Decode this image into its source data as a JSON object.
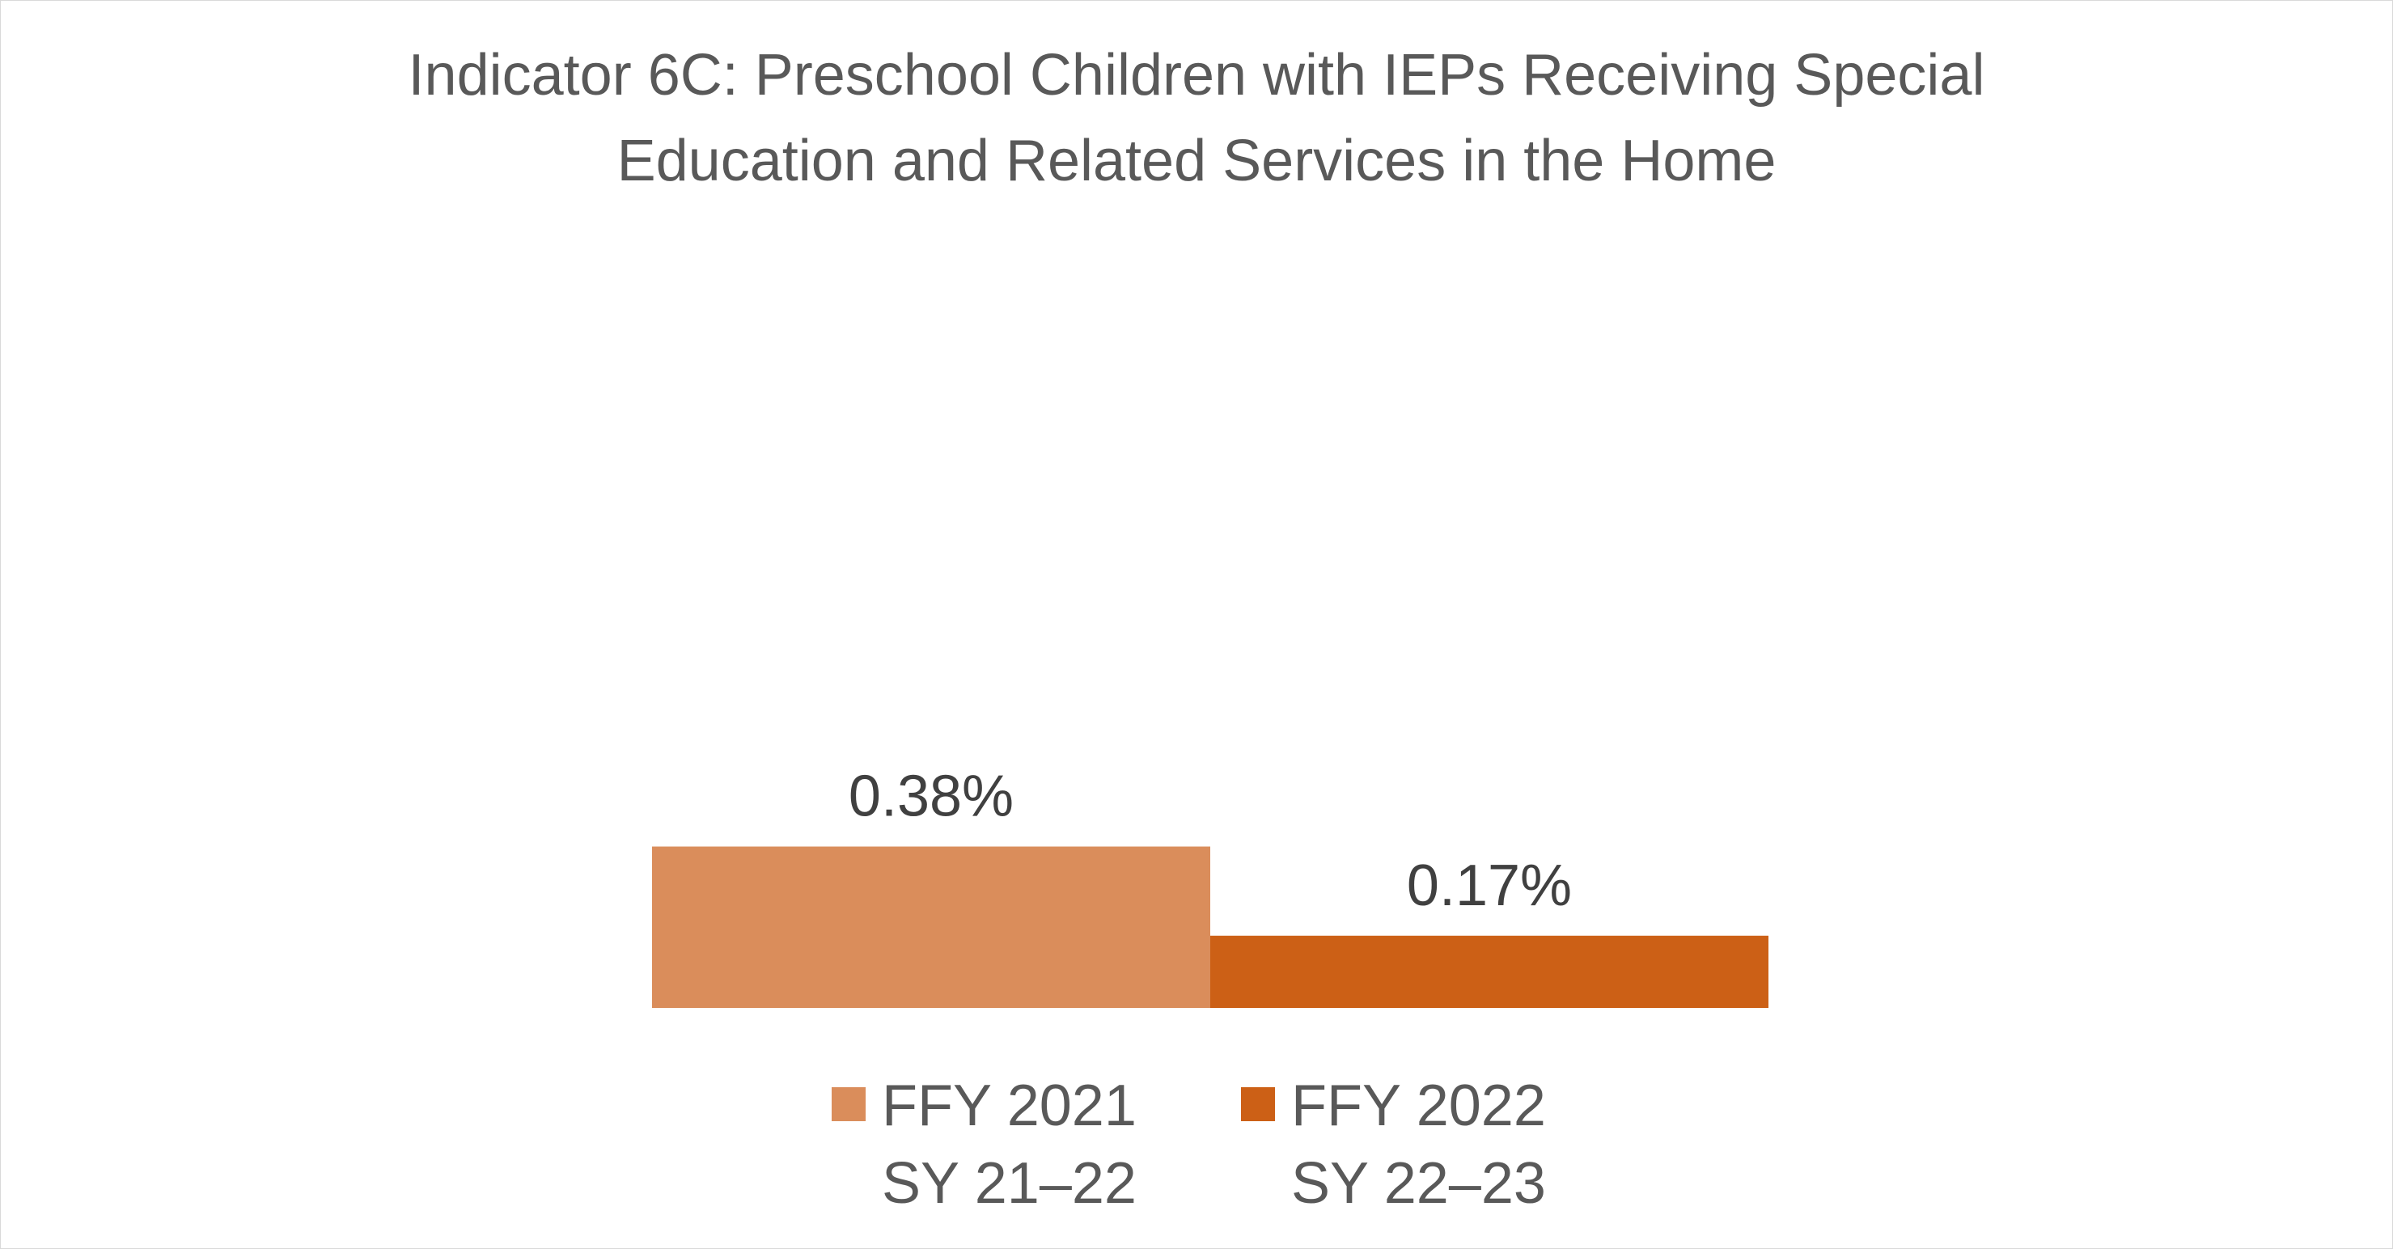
{
  "chart_data": {
    "type": "bar",
    "title": "Indicator 6C: Preschool Children with IEPs Receiving Special Education and Related Services in the Home",
    "title_lines": [
      "Indicator 6C: Preschool Children with IEPs Receiving Special",
      "Education and Related Services in the Home"
    ],
    "xlabel": "",
    "ylabel": "",
    "unit": "%",
    "ylim": [
      0,
      2.0
    ],
    "grid": false,
    "legend_position": "bottom",
    "series": [
      {
        "name": "FFY 2021 SY 21–22",
        "name_lines": [
          "FFY 2021",
          "SY 21–22"
        ],
        "value": 0.38,
        "label": "0.38%",
        "color": "#DA8D5B"
      },
      {
        "name": "FFY 2022 SY 22–23",
        "name_lines": [
          "FFY 2022",
          "SY 22–23"
        ],
        "value": 0.17,
        "label": "0.17%",
        "color": "#CC6016"
      }
    ]
  }
}
